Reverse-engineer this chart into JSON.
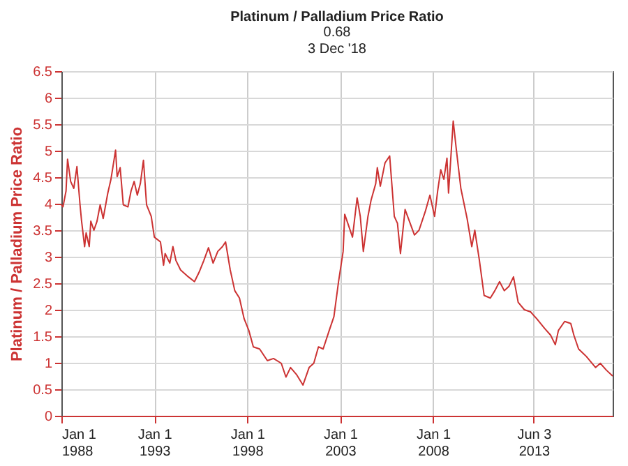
{
  "chart_data": {
    "type": "line",
    "title": "Platinum / Palladium Price Ratio",
    "subtitle": "0.68\n3 Dec '18",
    "ylabel": "Platinum / Palladium Price Ratio",
    "x": [
      "1988-01",
      "1988-02",
      "1988-04",
      "1988-05",
      "1988-07",
      "1988-09",
      "1988-11",
      "1989-01",
      "1989-02",
      "1989-04",
      "1989-05",
      "1989-07",
      "1989-08",
      "1989-10",
      "1989-12",
      "1990-02",
      "1990-04",
      "1990-07",
      "1990-09",
      "1990-12",
      "1991-01",
      "1991-03",
      "1991-05",
      "1991-08",
      "1991-10",
      "1991-12",
      "1992-02",
      "1992-04",
      "1992-06",
      "1992-08",
      "1992-11",
      "1993-01",
      "1993-05",
      "1993-07",
      "1993-08",
      "1993-11",
      "1994-01",
      "1994-03",
      "1994-06",
      "1994-11",
      "1995-03",
      "1995-06",
      "1995-09",
      "1995-12",
      "1996-03",
      "1996-06",
      "1996-09",
      "1996-11",
      "1997-02",
      "1997-05",
      "1997-08",
      "1997-11",
      "1998-02",
      "1998-05",
      "1998-09",
      "1999-02",
      "1999-06",
      "1999-11",
      "2000-02",
      "2000-05",
      "2000-09",
      "2001-01",
      "2001-05",
      "2001-08",
      "2001-11",
      "2002-02",
      "2002-06",
      "2002-09",
      "2002-12",
      "2003-03",
      "2003-04",
      "2003-06",
      "2003-09",
      "2003-12",
      "2004-02",
      "2004-04",
      "2004-07",
      "2004-09",
      "2004-12",
      "2005-01",
      "2005-03",
      "2005-06",
      "2005-09",
      "2005-12",
      "2006-02",
      "2006-04",
      "2006-07",
      "2007-01",
      "2007-04",
      "2007-08",
      "2007-11",
      "2008-02",
      "2008-04",
      "2008-06",
      "2008-08",
      "2008-10",
      "2008-11",
      "2009-02",
      "2009-04",
      "2009-07",
      "2009-11",
      "2010-02",
      "2010-04",
      "2010-07",
      "2010-10",
      "2011-02",
      "2011-05",
      "2011-08",
      "2011-11",
      "2012-02",
      "2012-05",
      "2012-08",
      "2012-12",
      "2013-04",
      "2013-08",
      "2014-01",
      "2014-05",
      "2014-08",
      "2014-10",
      "2015-02",
      "2015-06",
      "2015-08",
      "2015-11",
      "2016-04",
      "2016-10",
      "2017-01",
      "2017-05",
      "2017-09"
    ],
    "series": [
      {
        "color": "#cc3333",
        "values": [
          3.98,
          3.94,
          4.24,
          4.84,
          4.42,
          4.29,
          4.7,
          3.98,
          3.67,
          3.19,
          3.45,
          3.19,
          3.67,
          3.5,
          3.67,
          3.98,
          3.72,
          4.2,
          4.46,
          5.01,
          4.51,
          4.68,
          3.98,
          3.94,
          4.24,
          4.42,
          4.16,
          4.38,
          4.82,
          3.98,
          3.76,
          3.37,
          3.28,
          2.84,
          3.06,
          2.88,
          3.19,
          2.93,
          2.75,
          2.62,
          2.53,
          2.71,
          2.93,
          3.17,
          2.88,
          3.1,
          3.19,
          3.28,
          2.75,
          2.36,
          2.22,
          1.83,
          1.61,
          1.3,
          1.26,
          1.04,
          1.08,
          0.99,
          0.73,
          0.91,
          0.77,
          0.58,
          0.91,
          0.99,
          1.3,
          1.26,
          1.61,
          1.87,
          2.53,
          3.1,
          3.8,
          3.63,
          3.37,
          4.11,
          3.76,
          3.1,
          3.76,
          4.07,
          4.38,
          4.68,
          4.33,
          4.77,
          4.9,
          3.76,
          3.63,
          3.06,
          3.89,
          3.41,
          3.5,
          3.85,
          4.16,
          3.76,
          4.24,
          4.64,
          4.46,
          4.86,
          4.2,
          5.56,
          5.04,
          4.29,
          3.72,
          3.19,
          3.5,
          2.93,
          2.27,
          2.22,
          2.36,
          2.53,
          2.36,
          2.44,
          2.62,
          2.14,
          2.0,
          1.96,
          1.83,
          1.65,
          1.52,
          1.34,
          1.61,
          1.78,
          1.74,
          1.52,
          1.26,
          1.12,
          0.91,
          0.99,
          0.86,
          0.75
        ]
      }
    ],
    "xlim": [
      "1988-01-01",
      "2017-09-01"
    ],
    "xticks": [
      {
        "value": "1988-01-01",
        "label": "Jan 1\n1988"
      },
      {
        "value": "1993-01-01",
        "label": "Jan 1\n1993"
      },
      {
        "value": "1998-01-01",
        "label": "Jan 1\n1998"
      },
      {
        "value": "2003-01-01",
        "label": "Jan 1\n2003"
      },
      {
        "value": "2008-01-01",
        "label": "Jan 1\n2008"
      },
      {
        "value": "2013-06-03",
        "label": "Jun 3\n2013"
      }
    ],
    "ylim": [
      0,
      6.5
    ],
    "yticks": [
      0,
      0.5,
      1,
      1.5,
      2,
      2.5,
      3,
      3.5,
      4,
      4.5,
      5,
      5.5,
      6,
      6.5
    ],
    "grid": true
  }
}
